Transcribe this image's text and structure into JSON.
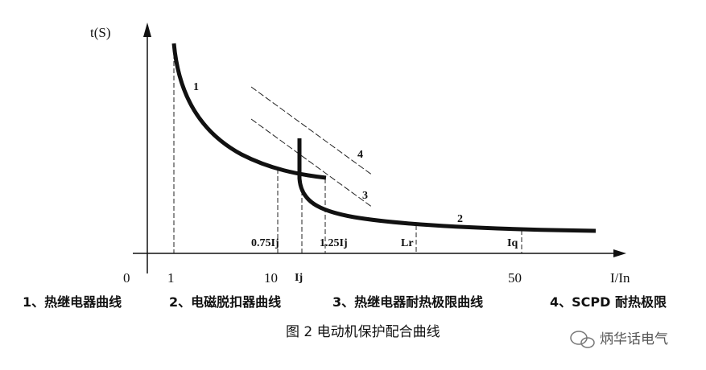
{
  "y_axis_label": "t(S)",
  "x_axis_label": "I/In",
  "x_ticks": [
    "0",
    "1",
    "10",
    "Ij",
    "50"
  ],
  "curve_labels": [
    "1",
    "2",
    "3",
    "4"
  ],
  "markers": [
    "0.75Ij",
    "1.25Ij",
    "Lr",
    "Iq"
  ],
  "legend": [
    "1、热继电器曲线",
    "2、电磁脱扣器曲线",
    "3、热继电器耐热极限曲线",
    "4、SCPD 耐热极限"
  ],
  "caption": "图 2  电动机保护配合曲线",
  "watermark": "炳华话电气"
}
